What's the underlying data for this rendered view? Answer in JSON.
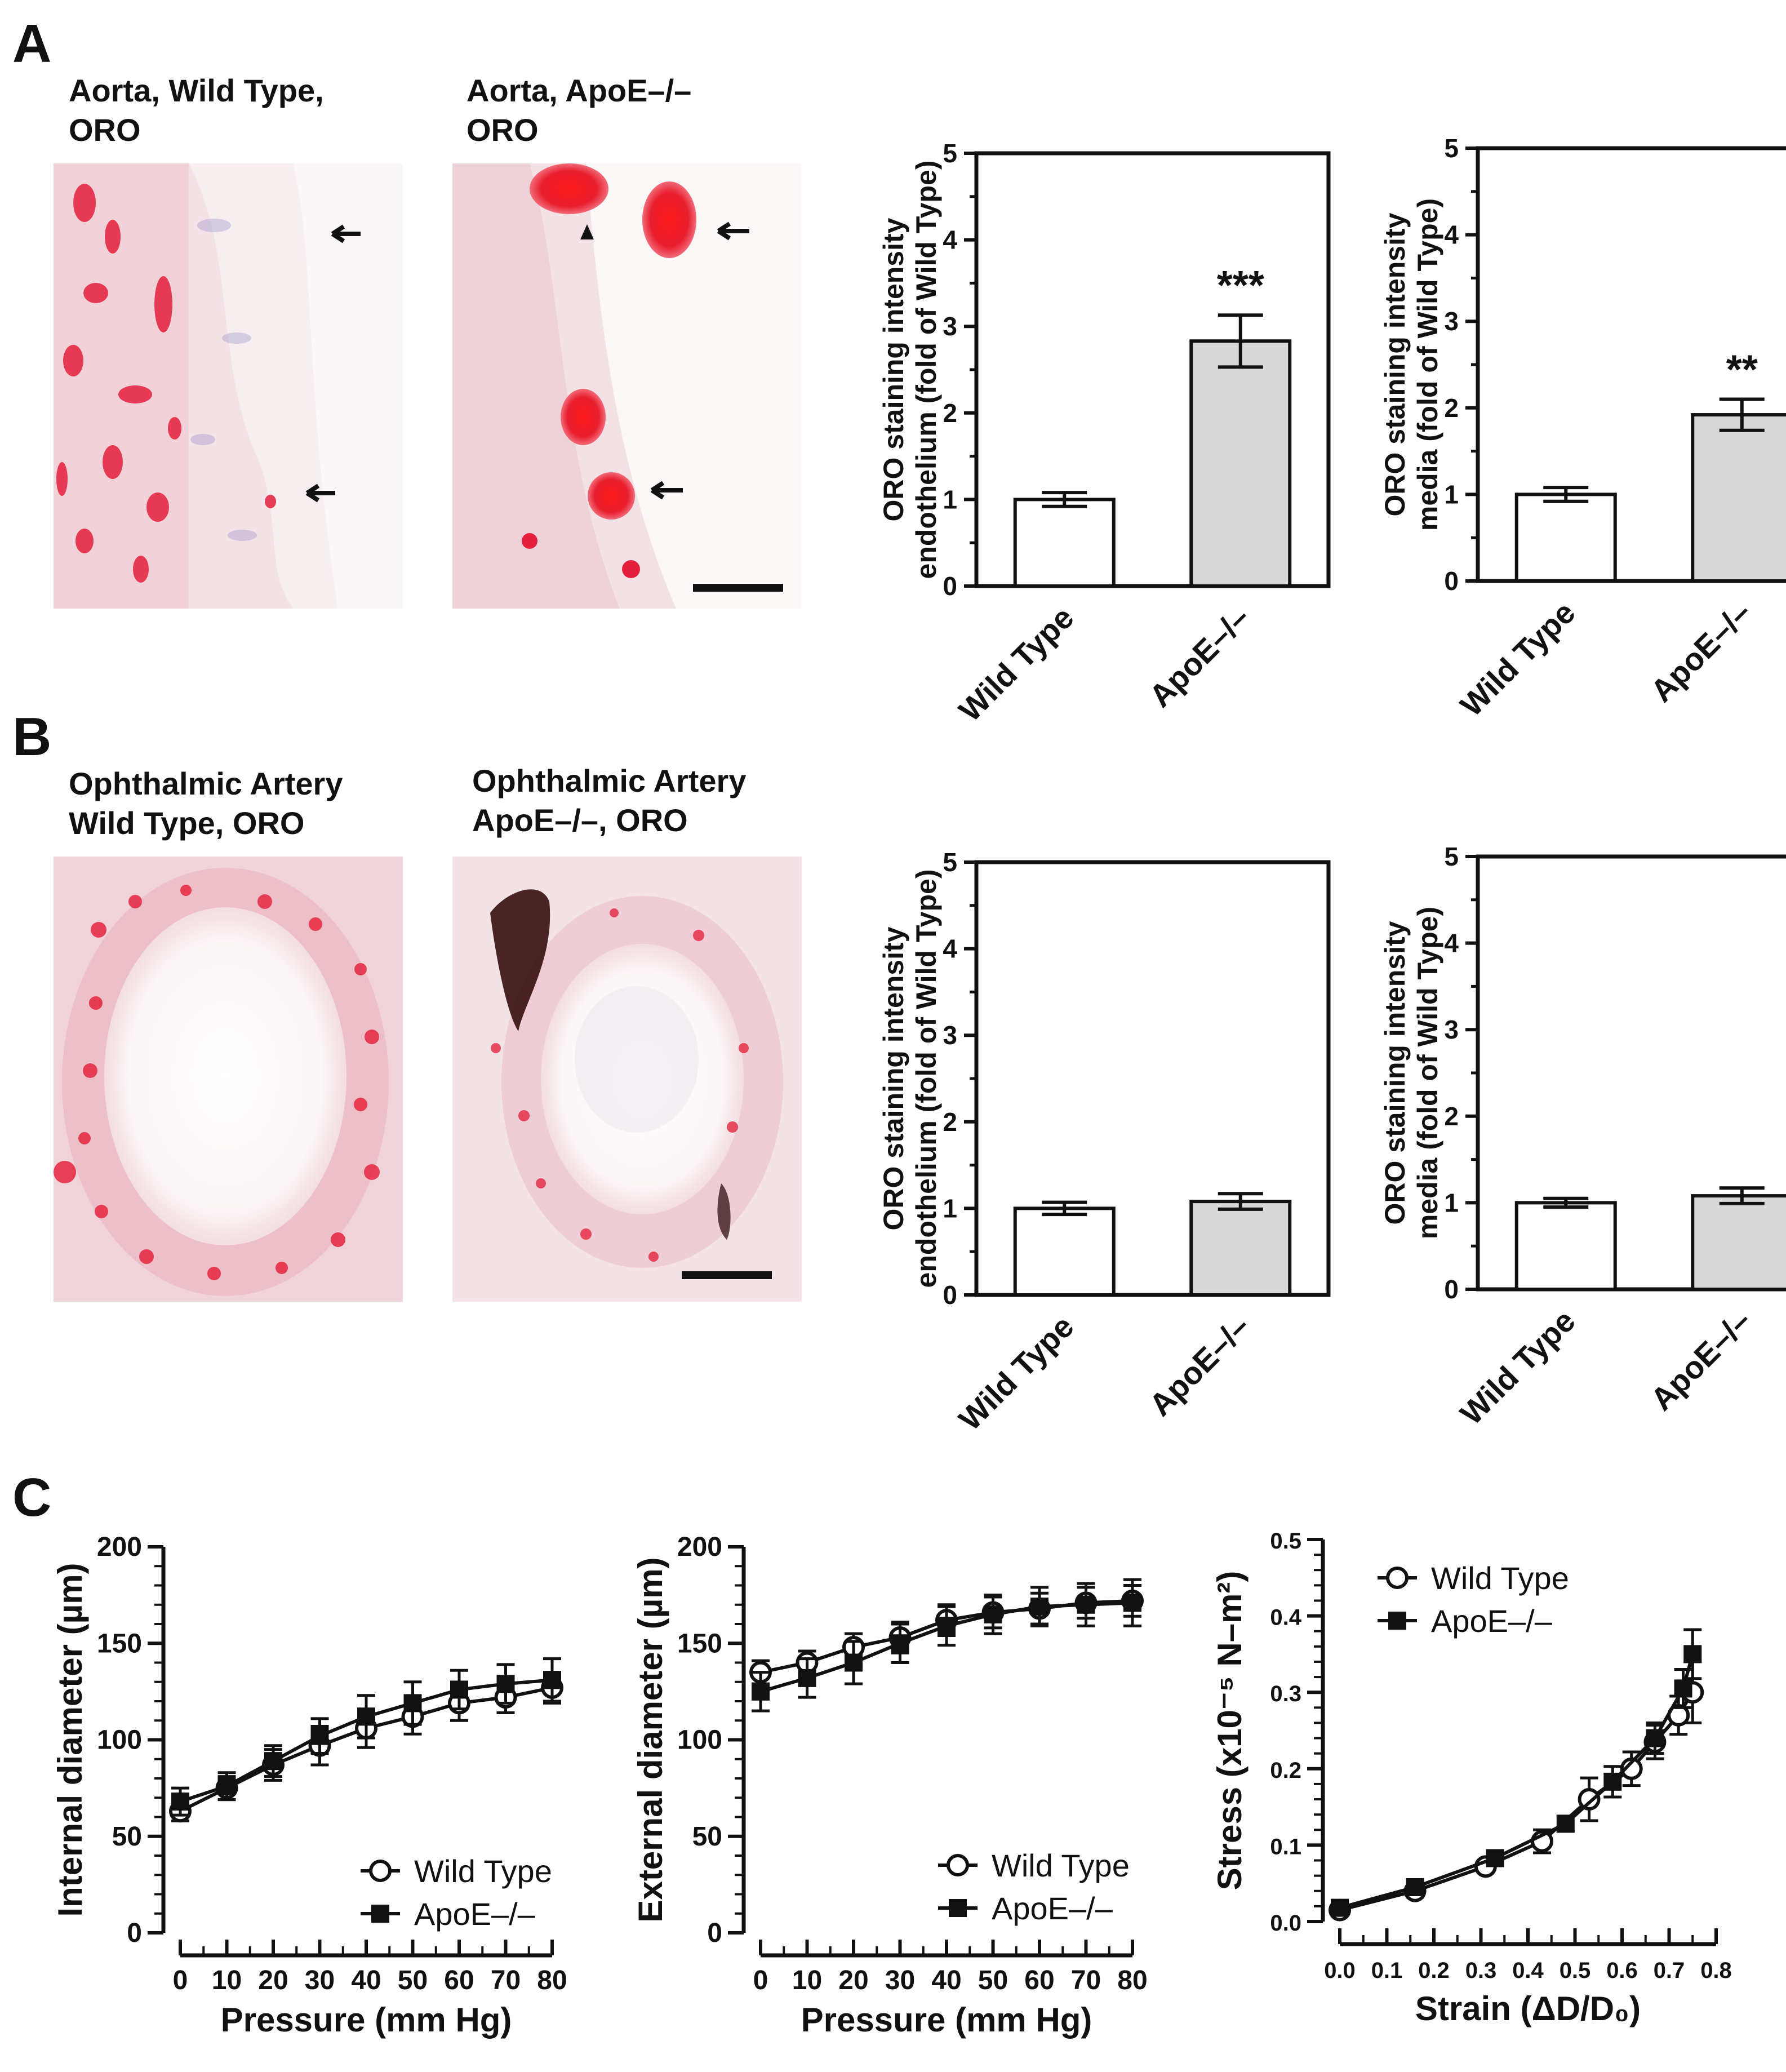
{
  "panel_labels": {
    "a": "A",
    "b": "B",
    "c": "C"
  },
  "images": {
    "aorta_wt": {
      "title_line1": "Aorta, Wild Type,",
      "title_line2": "ORO"
    },
    "aorta_ko": {
      "title_line1": "Aorta, ApoE–/–",
      "title_line2": "ORO"
    },
    "oa_wt": {
      "title_line1": "Ophthalmic Artery",
      "title_line2": "Wild Type, ORO"
    },
    "oa_ko": {
      "title_line1": "Ophthalmic Artery",
      "title_line2": "ApoE–/–, ORO"
    }
  },
  "colors": {
    "wt_bar": "#ffffff",
    "ko_bar": "#d9d9d9",
    "stain_red": "#e8243f",
    "tissue_bg": "#f4e3e6"
  },
  "chart_data": [
    {
      "id": "A-endo",
      "type": "bar",
      "ylabel_line1": "ORO staining intensity",
      "ylabel_line2": "endothelium (fold of Wild Type)",
      "categories": [
        "Wild Type",
        "ApoE–/–"
      ],
      "values": [
        1.0,
        2.83
      ],
      "errors": [
        0.08,
        0.3
      ],
      "annotations": [
        "",
        "***"
      ],
      "ylim": [
        0,
        5
      ],
      "yticks": [
        "0",
        "1",
        "2",
        "3",
        "4",
        "5"
      ]
    },
    {
      "id": "A-media",
      "type": "bar",
      "ylabel_line1": "ORO staining intensity",
      "ylabel_line2": "media (fold of Wild Type)",
      "categories": [
        "Wild Type",
        "ApoE–/–"
      ],
      "values": [
        1.0,
        1.92
      ],
      "errors": [
        0.08,
        0.18
      ],
      "annotations": [
        "",
        "**"
      ],
      "ylim": [
        0,
        5
      ],
      "yticks": [
        "0",
        "1",
        "2",
        "3",
        "4",
        "5"
      ]
    },
    {
      "id": "B-endo",
      "type": "bar",
      "ylabel_line1": "ORO staining intensity",
      "ylabel_line2": "endothelium (fold of Wild Type)",
      "categories": [
        "Wild Type",
        "ApoE–/–"
      ],
      "values": [
        1.0,
        1.08
      ],
      "errors": [
        0.07,
        0.09
      ],
      "annotations": [
        "",
        ""
      ],
      "ylim": [
        0,
        5
      ],
      "yticks": [
        "0",
        "1",
        "2",
        "3",
        "4",
        "5"
      ]
    },
    {
      "id": "B-media",
      "type": "bar",
      "ylabel_line1": "ORO staining intensity",
      "ylabel_line2": "media (fold of Wild Type)",
      "categories": [
        "Wild Type",
        "ApoE–/–"
      ],
      "values": [
        1.0,
        1.08
      ],
      "errors": [
        0.05,
        0.09
      ],
      "annotations": [
        "",
        ""
      ],
      "ylim": [
        0,
        5
      ],
      "yticks": [
        "0",
        "1",
        "2",
        "3",
        "4",
        "5"
      ]
    },
    {
      "id": "C-internal",
      "type": "line",
      "xlabel": "Pressure (mm Hg)",
      "ylabel": "Internal diameter (µm)",
      "x": [
        0,
        10,
        20,
        30,
        40,
        50,
        60,
        70,
        80
      ],
      "xlim": [
        0,
        80
      ],
      "ylim": [
        0,
        200
      ],
      "xticks": [
        "0",
        "10",
        "20",
        "30",
        "40",
        "50",
        "60",
        "70",
        "80"
      ],
      "yticks": [
        "0",
        "50",
        "100",
        "150",
        "200"
      ],
      "legend": "lower-right",
      "series": [
        {
          "name": "Wild Type",
          "marker": "open-circle",
          "values": [
            63,
            75,
            87,
            97,
            106,
            112,
            119,
            122,
            127
          ],
          "errors": [
            5,
            6,
            8,
            10,
            10,
            9,
            9,
            8,
            8
          ]
        },
        {
          "name": "ApoE–/–",
          "marker": "filled-square",
          "values": [
            68,
            76,
            89,
            102,
            112,
            119,
            126,
            129,
            131
          ],
          "errors": [
            7,
            7,
            8,
            9,
            11,
            11,
            10,
            10,
            11
          ]
        }
      ]
    },
    {
      "id": "C-external",
      "type": "line",
      "xlabel": "Pressure (mm Hg)",
      "ylabel": "External diameter (µm)",
      "x": [
        0,
        10,
        20,
        30,
        40,
        50,
        60,
        70,
        80
      ],
      "xlim": [
        0,
        80
      ],
      "ylim": [
        0,
        200
      ],
      "xticks": [
        "0",
        "10",
        "20",
        "30",
        "40",
        "50",
        "60",
        "70",
        "80"
      ],
      "yticks": [
        "0",
        "50",
        "100",
        "150",
        "200"
      ],
      "legend": "lower-right",
      "series": [
        {
          "name": "Wild Type",
          "marker": "open-circle",
          "values": [
            135,
            140,
            148,
            153,
            162,
            166,
            168,
            171,
            172
          ],
          "errors": [
            6,
            6,
            7,
            8,
            8,
            8,
            8,
            8,
            8
          ]
        },
        {
          "name": "ApoE–/–",
          "marker": "filled-square",
          "values": [
            125,
            132,
            140,
            150,
            159,
            165,
            169,
            170,
            171
          ],
          "errors": [
            10,
            10,
            11,
            10,
            10,
            10,
            10,
            11,
            12
          ]
        }
      ]
    },
    {
      "id": "C-stress",
      "type": "line",
      "xlabel": "Strain (ΔD/D₀)",
      "ylabel": "Stress (x10⁻⁵ N–m²)",
      "xlim": [
        0,
        0.8
      ],
      "ylim": [
        0,
        0.5
      ],
      "xticks": [
        "0.0",
        "0.1",
        "0.2",
        "0.3",
        "0.4",
        "0.5",
        "0.6",
        "0.7",
        "0.8"
      ],
      "yticks": [
        "0.0",
        "0.1",
        "0.2",
        "0.3",
        "0.4",
        "0.5"
      ],
      "legend": "top-left",
      "series": [
        {
          "name": "Wild Type",
          "marker": "open-circle",
          "x": [
            0.0,
            0.16,
            0.31,
            0.43,
            0.53,
            0.62,
            0.67,
            0.72,
            0.75
          ],
          "values": [
            0.015,
            0.04,
            0.072,
            0.105,
            0.16,
            0.2,
            0.235,
            0.27,
            0.3
          ],
          "errors": [
            0.005,
            0.008,
            0.006,
            0.015,
            0.028,
            0.022,
            0.022,
            0.025,
            0.04
          ]
        },
        {
          "name": "ApoE–/–",
          "marker": "filled-square",
          "x": [
            0.0,
            0.16,
            0.33,
            0.48,
            0.58,
            0.67,
            0.73,
            0.75
          ],
          "values": [
            0.018,
            0.045,
            0.083,
            0.128,
            0.183,
            0.24,
            0.305,
            0.35
          ],
          "errors": [
            0.005,
            0.006,
            0.006,
            0.01,
            0.02,
            0.02,
            0.025,
            0.032
          ]
        }
      ]
    }
  ]
}
